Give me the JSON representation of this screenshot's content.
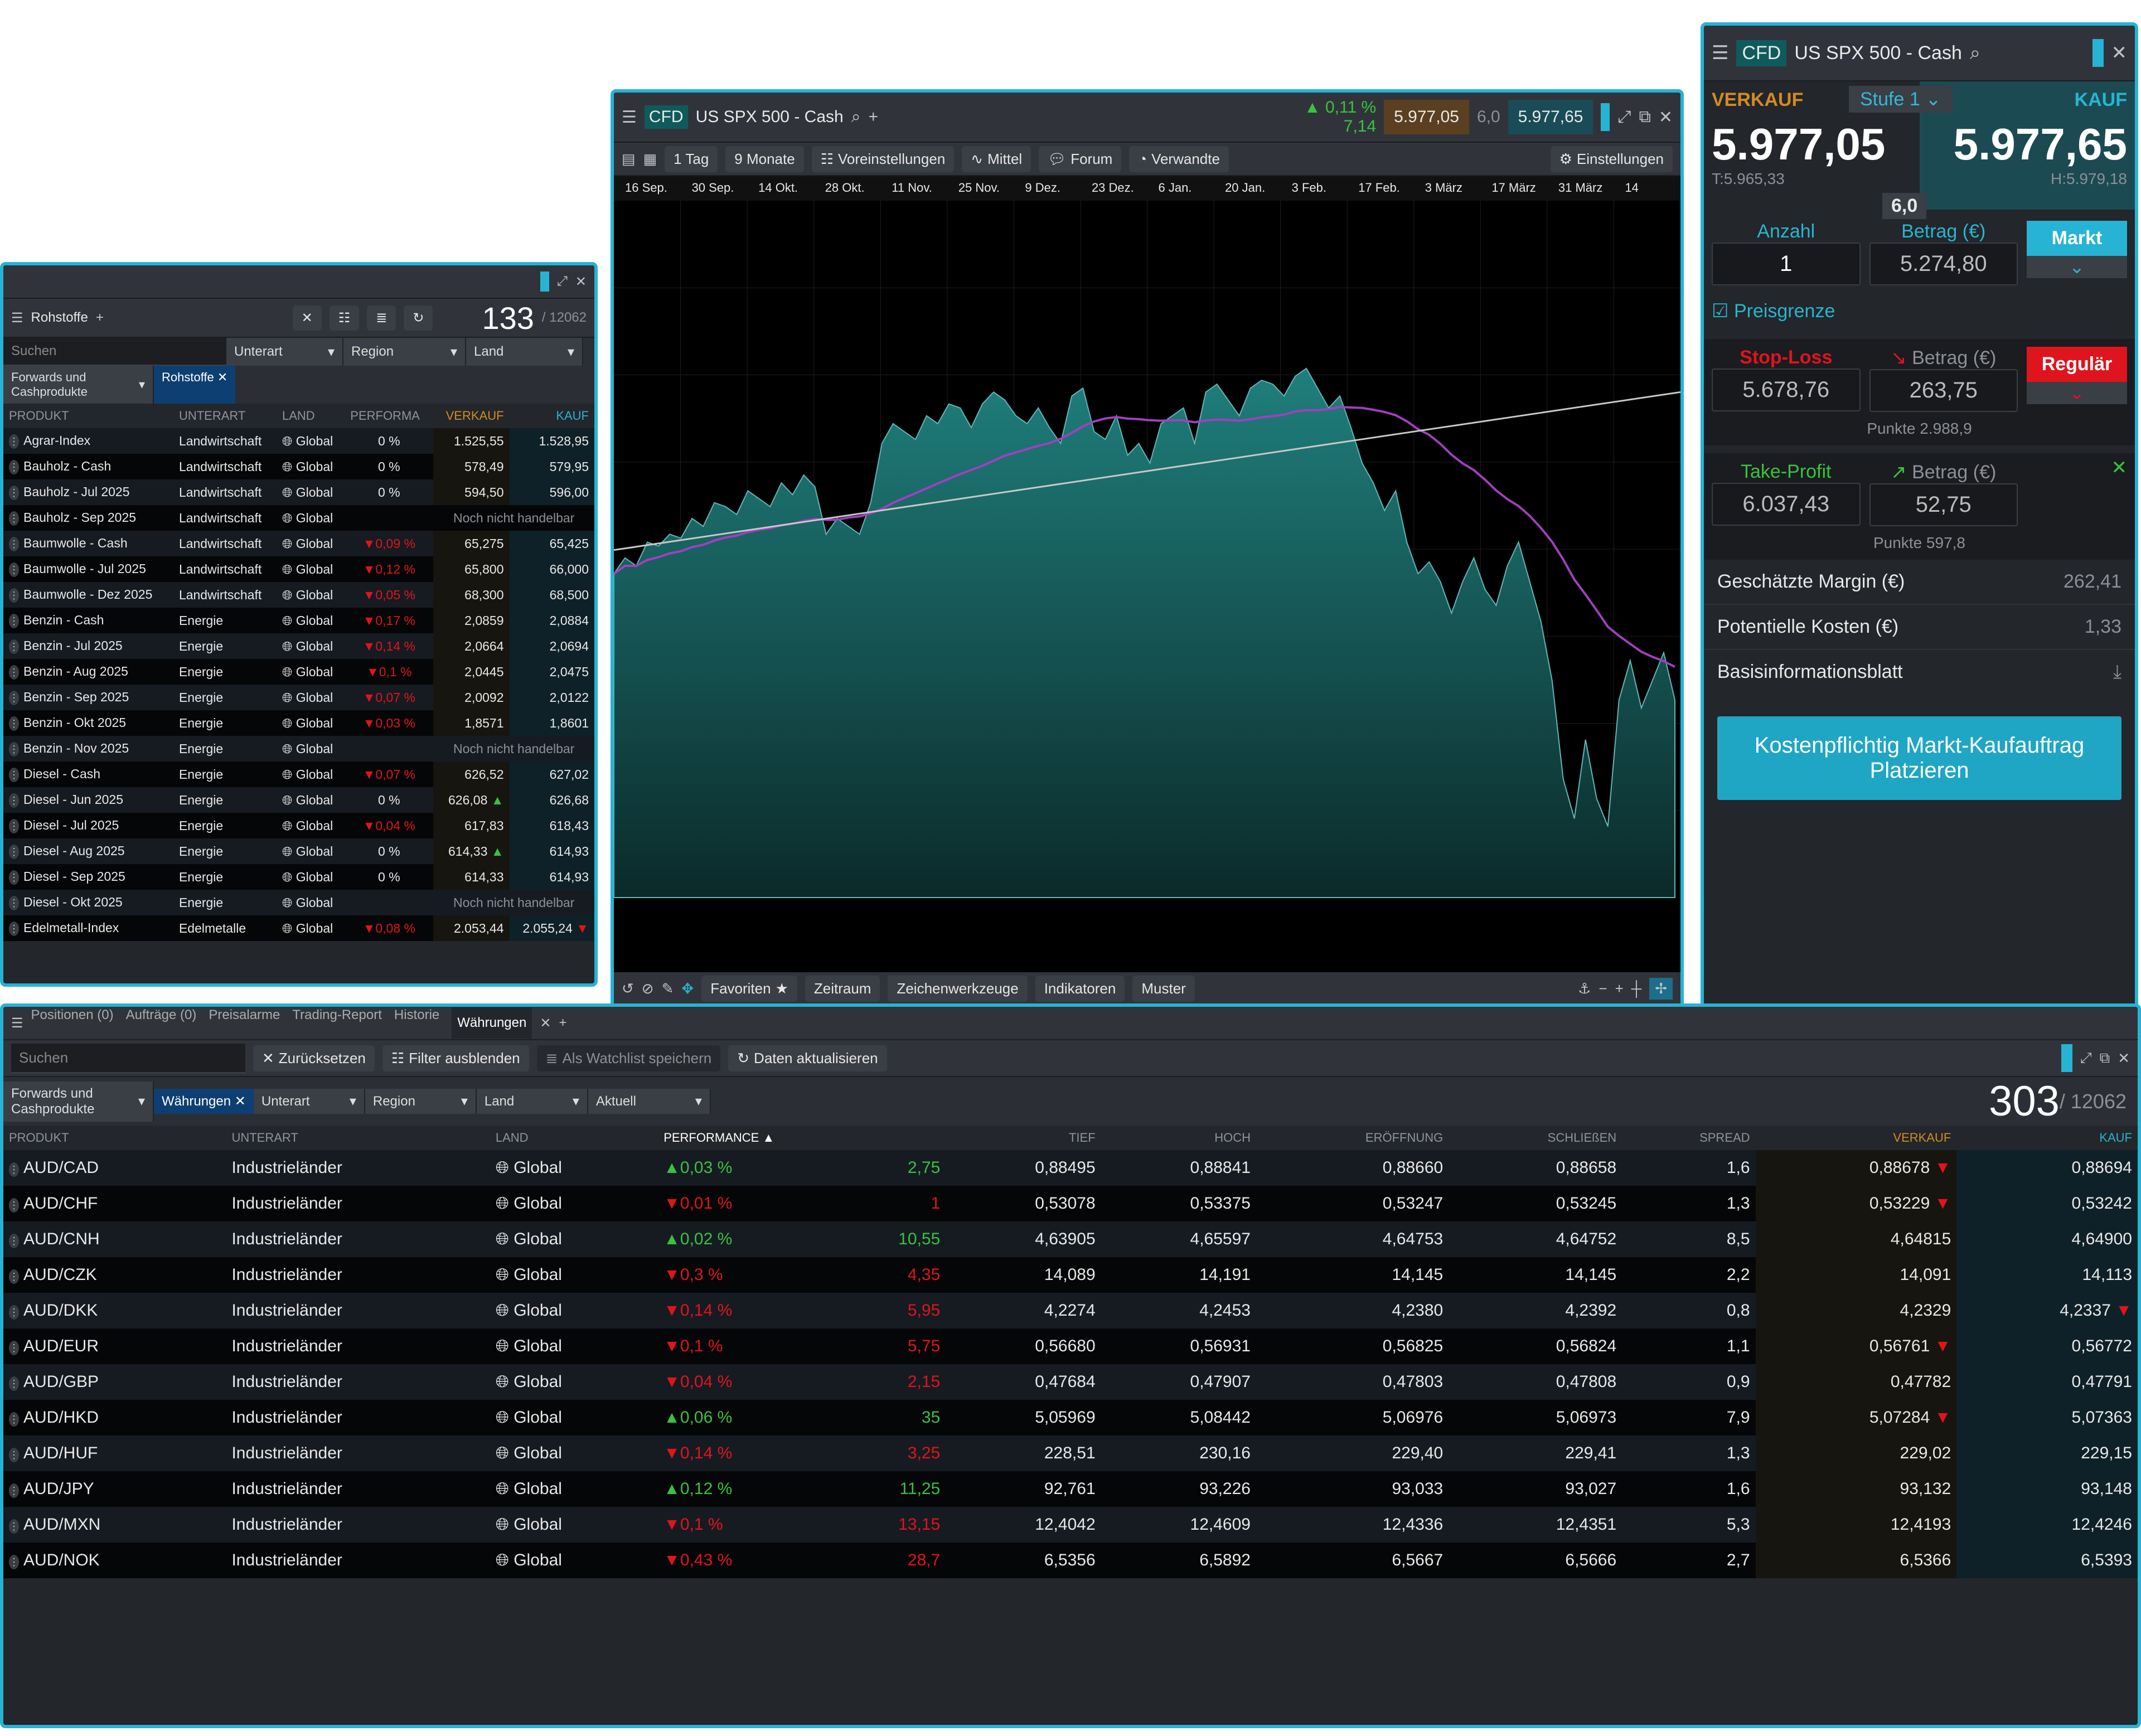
{
  "watchlist": {
    "tab": "Rohstoffe",
    "search_placeholder": "Suchen",
    "count": "133",
    "total": "/ 12062",
    "filters": {
      "category": "Forwards und Cashprodukte",
      "chip": "Rohstoffe",
      "unterart": "Unterart",
      "region": "Region",
      "land": "Land"
    },
    "columns": {
      "produkt": "PRODUKT",
      "unterart": "UNTERART",
      "land": "LAND",
      "performance": "PERFORMA",
      "verkauf": "VERKAUF",
      "kauf": "KAUF"
    },
    "rows": [
      {
        "name": "Agrar-Index",
        "unterart": "Landwirtschaft",
        "land": "Global",
        "perf": "0 %",
        "dir": "",
        "sell": "1.525,55",
        "buy": "1.528,95"
      },
      {
        "name": "Bauholz - Cash",
        "unterart": "Landwirtschaft",
        "land": "Global",
        "perf": "0 %",
        "dir": "",
        "sell": "578,49",
        "buy": "579,95"
      },
      {
        "name": "Bauholz - Jul 2025",
        "unterart": "Landwirtschaft",
        "land": "Global",
        "perf": "0 %",
        "dir": "",
        "sell": "594,50",
        "buy": "596,00"
      },
      {
        "name": "Bauholz - Sep 2025",
        "unterart": "Landwirtschaft",
        "land": "Global",
        "perf": "",
        "dir": "",
        "status": "Noch nicht handelbar"
      },
      {
        "name": "Baumwolle - Cash",
        "unterart": "Landwirtschaft",
        "land": "Global",
        "perf": "0,09 %",
        "dir": "down",
        "sell": "65,275",
        "buy": "65,425"
      },
      {
        "name": "Baumwolle - Jul 2025",
        "unterart": "Landwirtschaft",
        "land": "Global",
        "perf": "0,12 %",
        "dir": "down",
        "sell": "65,800",
        "buy": "66,000"
      },
      {
        "name": "Baumwolle - Dez 2025",
        "unterart": "Landwirtschaft",
        "land": "Global",
        "perf": "0,05 %",
        "dir": "down",
        "sell": "68,300",
        "buy": "68,500"
      },
      {
        "name": "Benzin - Cash",
        "unterart": "Energie",
        "land": "Global",
        "perf": "0,17 %",
        "dir": "down",
        "sell": "2,0859",
        "buy": "2,0884"
      },
      {
        "name": "Benzin - Jul 2025",
        "unterart": "Energie",
        "land": "Global",
        "perf": "0,14 %",
        "dir": "down",
        "sell": "2,0664",
        "buy": "2,0694"
      },
      {
        "name": "Benzin - Aug 2025",
        "unterart": "Energie",
        "land": "Global",
        "perf": "0,1 %",
        "dir": "down",
        "sell": "2,0445",
        "buy": "2,0475"
      },
      {
        "name": "Benzin - Sep 2025",
        "unterart": "Energie",
        "land": "Global",
        "perf": "0,07 %",
        "dir": "down",
        "sell": "2,0092",
        "buy": "2,0122"
      },
      {
        "name": "Benzin - Okt 2025",
        "unterart": "Energie",
        "land": "Global",
        "perf": "0,03 %",
        "dir": "down",
        "sell": "1,8571",
        "buy": "1,8601"
      },
      {
        "name": "Benzin - Nov 2025",
        "unterart": "Energie",
        "land": "Global",
        "perf": "",
        "dir": "",
        "status": "Noch nicht handelbar"
      },
      {
        "name": "Diesel - Cash",
        "unterart": "Energie",
        "land": "Global",
        "perf": "0,07 %",
        "dir": "down",
        "sell": "626,52",
        "buy": "627,02"
      },
      {
        "name": "Diesel - Jun 2025",
        "unterart": "Energie",
        "land": "Global",
        "perf": "0 %",
        "dir": "",
        "sell": "626,08",
        "sell_tick": "up",
        "buy": "626,68"
      },
      {
        "name": "Diesel - Jul 2025",
        "unterart": "Energie",
        "land": "Global",
        "perf": "0,04 %",
        "dir": "down",
        "sell": "617,83",
        "buy": "618,43"
      },
      {
        "name": "Diesel - Aug 2025",
        "unterart": "Energie",
        "land": "Global",
        "perf": "0 %",
        "dir": "",
        "sell": "614,33",
        "sell_tick": "up",
        "buy": "614,93"
      },
      {
        "name": "Diesel - Sep 2025",
        "unterart": "Energie",
        "land": "Global",
        "perf": "0 %",
        "dir": "",
        "sell": "614,33",
        "buy": "614,93"
      },
      {
        "name": "Diesel - Okt 2025",
        "unterart": "Energie",
        "land": "Global",
        "perf": "",
        "dir": "",
        "status": "Noch nicht handelbar"
      },
      {
        "name": "Edelmetall-Index",
        "unterart": "Edelmetalle",
        "land": "Global",
        "perf": "0,08 %",
        "dir": "down",
        "sell": "2.053,44",
        "buy": "2.055,24",
        "buy_tick": "down"
      }
    ]
  },
  "chart": {
    "instrument_badge": "CFD",
    "instrument": "US SPX 500 - Cash",
    "change_pct": "0,11 %",
    "change_abs": "7,14",
    "sell": "5.977,05",
    "buy": "5.977,65",
    "spread": "6,0",
    "toolbar": {
      "interval": "1 Tag",
      "range": "9 Monate",
      "presets": "Voreinstellungen",
      "type": "Mittel",
      "forum": "Forum",
      "related": "Verwandte",
      "settings": "Einstellungen"
    },
    "bottom": {
      "favorites": "Favoriten",
      "period": "Zeitraum",
      "drawing": "Zeichenwerkzeuge",
      "indicators": "Indikatoren",
      "patterns": "Muster"
    },
    "colors": {
      "area": "#1f7f7c",
      "ma": "#a23fc0",
      "line": "#c8c8c8"
    }
  },
  "chart_data": {
    "type": "area",
    "x_ticks": [
      "16 Sep.",
      "30 Sep.",
      "14 Okt.",
      "28 Okt.",
      "11 Nov.",
      "25 Nov.",
      "9 Dez.",
      "23 Dez.",
      "6 Jan.",
      "20 Jan.",
      "3 Feb.",
      "17 Feb.",
      "3 März",
      "17 März",
      "31 März",
      "14"
    ],
    "series": [
      {
        "values": [
          5620,
          5660,
          5640,
          5700,
          5690,
          5720,
          5710,
          5760,
          5740,
          5800,
          5790,
          5770,
          5830,
          5810,
          5790,
          5850,
          5820,
          5870,
          5840,
          5720,
          5760,
          5740,
          5720,
          5800,
          5950,
          6000,
          5980,
          5960,
          6020,
          6000,
          6050,
          6040,
          5990,
          6050,
          6080,
          6060,
          6020,
          6000,
          6040,
          5990,
          5950,
          6070,
          6090,
          5980,
          5960,
          6020,
          5920,
          5950,
          5900,
          6000,
          6020,
          6040,
          5950,
          6080,
          6100,
          6060,
          6020,
          6090,
          6110,
          6100,
          6070,
          6120,
          6140,
          6090,
          6040,
          6070,
          5990,
          5900,
          5850,
          5780,
          5830,
          5700,
          5620,
          5650,
          5600,
          5520,
          5600,
          5660,
          5580,
          5540,
          5640,
          5700,
          5600,
          5500,
          5350,
          5100,
          5000,
          5200,
          5050,
          4980,
          5300,
          5400,
          5280,
          5350,
          5420,
          5300
        ]
      }
    ],
    "grid": true
  },
  "order": {
    "badge": "CFD",
    "instrument": "US SPX 500 - Cash",
    "sell_label": "VERKAUF",
    "buy_label": "KAUF",
    "level": "Stufe 1",
    "sell": "5.977,05",
    "buy": "5.977,65",
    "low": "T:5.965,33",
    "high": "H:5.979,18",
    "spread": "6,0",
    "qty_label": "Anzahl",
    "qty": "1",
    "amount_label": "Betrag (€)",
    "amount": "5.274,80",
    "type": "Markt",
    "limit_label": "Preisgrenze",
    "stop": {
      "label": "Stop-Loss",
      "amount_label": "Betrag (€)",
      "price": "5.678,76",
      "amount": "263,75",
      "type": "Regulär",
      "points": "Punkte 2.988,9"
    },
    "take": {
      "label": "Take-Profit",
      "amount_label": "Betrag (€)",
      "price": "6.037,43",
      "amount": "52,75",
      "points": "Punkte 597,8"
    },
    "margin_label": "Geschätzte Margin (€)",
    "margin": "262,41",
    "costs_label": "Potentielle Kosten (€)",
    "costs": "1,33",
    "kid_label": "Basisinformationsblatt",
    "submit": "Kostenpflichtig Markt-Kaufauftrag Platzieren"
  },
  "bottom": {
    "tabs": [
      "Positionen (0)",
      "Aufträge (0)",
      "Preisalarme",
      "Trading-Report",
      "Historie",
      "Währungen"
    ],
    "search_placeholder": "Suchen",
    "reset": "Zurücksetzen",
    "hide_filters": "Filter ausblenden",
    "save_watchlist": "Als Watchlist speichern",
    "refresh": "Daten aktualisieren",
    "filters": {
      "category": "Forwards und Cashprodukte",
      "chip": "Währungen",
      "unterart": "Unterart",
      "region": "Region",
      "land": "Land",
      "current": "Aktuell"
    },
    "count": "303",
    "total": "/ 12062",
    "columns": {
      "produkt": "PRODUKT",
      "unterart": "UNTERART",
      "land": "LAND",
      "performance": "PERFORMANCE",
      "tief": "TIEF",
      "hoch": "HOCH",
      "open": "ERÖFFNUNG",
      "close": "SCHLIEßEN",
      "spread": "SPREAD",
      "verkauf": "VERKAUF",
      "kauf": "KAUF"
    },
    "rows": [
      {
        "name": "AUD/CAD",
        "unterart": "Industrieländer",
        "land": "Global",
        "perf": "0,03 %",
        "dir": "up",
        "pts": "2,75",
        "low": "0,88495",
        "high": "0,88841",
        "open": "0,88660",
        "close": "0,88658",
        "spread": "1,6",
        "sell": "0,88678",
        "sell_tick": "down",
        "buy": "0,88694"
      },
      {
        "name": "AUD/CHF",
        "unterart": "Industrieländer",
        "land": "Global",
        "perf": "0,01 %",
        "dir": "down",
        "pts": "1",
        "low": "0,53078",
        "high": "0,53375",
        "open": "0,53247",
        "close": "0,53245",
        "spread": "1,3",
        "sell": "0,53229",
        "sell_tick": "down",
        "buy": "0,53242"
      },
      {
        "name": "AUD/CNH",
        "unterart": "Industrieländer",
        "land": "Global",
        "perf": "0,02 %",
        "dir": "up",
        "pts": "10,55",
        "low": "4,63905",
        "high": "4,65597",
        "open": "4,64753",
        "close": "4,64752",
        "spread": "8,5",
        "sell": "4,64815",
        "buy": "4,64900"
      },
      {
        "name": "AUD/CZK",
        "unterart": "Industrieländer",
        "land": "Global",
        "perf": "0,3 %",
        "dir": "down",
        "pts": "4,35",
        "low": "14,089",
        "high": "14,191",
        "open": "14,145",
        "close": "14,145",
        "spread": "2,2",
        "sell": "14,091",
        "buy": "14,113"
      },
      {
        "name": "AUD/DKK",
        "unterart": "Industrieländer",
        "land": "Global",
        "perf": "0,14 %",
        "dir": "down",
        "pts": "5,95",
        "low": "4,2274",
        "high": "4,2453",
        "open": "4,2380",
        "close": "4,2392",
        "spread": "0,8",
        "sell": "4,2329",
        "buy": "4,2337",
        "buy_tick": "down"
      },
      {
        "name": "AUD/EUR",
        "unterart": "Industrieländer",
        "land": "Global",
        "perf": "0,1 %",
        "dir": "down",
        "pts": "5,75",
        "low": "0,56680",
        "high": "0,56931",
        "open": "0,56825",
        "close": "0,56824",
        "spread": "1,1",
        "sell": "0,56761",
        "sell_tick": "down",
        "buy": "0,56772"
      },
      {
        "name": "AUD/GBP",
        "unterart": "Industrieländer",
        "land": "Global",
        "perf": "0,04 %",
        "dir": "down",
        "pts": "2,15",
        "low": "0,47684",
        "high": "0,47907",
        "open": "0,47803",
        "close": "0,47808",
        "spread": "0,9",
        "sell": "0,47782",
        "buy": "0,47791"
      },
      {
        "name": "AUD/HKD",
        "unterart": "Industrieländer",
        "land": "Global",
        "perf": "0,06 %",
        "dir": "up",
        "pts": "35",
        "low": "5,05969",
        "high": "5,08442",
        "open": "5,06976",
        "close": "5,06973",
        "spread": "7,9",
        "sell": "5,07284",
        "sell_tick": "down",
        "buy": "5,07363"
      },
      {
        "name": "AUD/HUF",
        "unterart": "Industrieländer",
        "land": "Global",
        "perf": "0,14 %",
        "dir": "down",
        "pts": "3,25",
        "low": "228,51",
        "high": "230,16",
        "open": "229,40",
        "close": "229,41",
        "spread": "1,3",
        "sell": "229,02",
        "buy": "229,15"
      },
      {
        "name": "AUD/JPY",
        "unterart": "Industrieländer",
        "land": "Global",
        "perf": "0,12 %",
        "dir": "up",
        "pts": "11,25",
        "low": "92,761",
        "high": "93,226",
        "open": "93,033",
        "close": "93,027",
        "spread": "1,6",
        "sell": "93,132",
        "buy": "93,148"
      },
      {
        "name": "AUD/MXN",
        "unterart": "Industrieländer",
        "land": "Global",
        "perf": "0,1 %",
        "dir": "down",
        "pts": "13,15",
        "low": "12,4042",
        "high": "12,4609",
        "open": "12,4336",
        "close": "12,4351",
        "spread": "5,3",
        "sell": "12,4193",
        "buy": "12,4246"
      },
      {
        "name": "AUD/NOK",
        "unterart": "Industrieländer",
        "land": "Global",
        "perf": "0,43 %",
        "dir": "down",
        "pts": "28,7",
        "low": "6,5356",
        "high": "6,5892",
        "open": "6,5667",
        "close": "6,5666",
        "spread": "2,7",
        "sell": "6,5366",
        "buy": "6,5393"
      }
    ]
  }
}
